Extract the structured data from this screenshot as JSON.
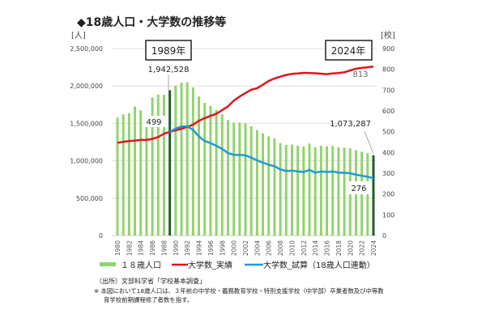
{
  "chart_data": {
    "type": "bar+line",
    "title": "◆18歳人口・大学数の推移等",
    "left_unit": "[人]",
    "right_unit": "[校]",
    "ylim_left": [
      0,
      2500000
    ],
    "ylim_right": [
      0,
      900
    ],
    "left_ticks": [
      "2,500,000",
      "2,000,000",
      "1,500,000",
      "1,000,000",
      "500,000",
      "0"
    ],
    "left_tick_values": [
      2500000,
      2000000,
      1500000,
      1000000,
      500000,
      0
    ],
    "right_ticks": [
      "900",
      "800",
      "700",
      "600",
      "500",
      "400",
      "300",
      "200",
      "100",
      "0"
    ],
    "right_tick_values": [
      900,
      800,
      700,
      600,
      500,
      400,
      300,
      200,
      100,
      0
    ],
    "grid": true,
    "x": [
      1980,
      1981,
      1982,
      1983,
      1984,
      1985,
      1986,
      1987,
      1988,
      1989,
      1990,
      1991,
      1992,
      1993,
      1994,
      1995,
      1996,
      1997,
      1998,
      1999,
      2000,
      2001,
      2002,
      2003,
      2004,
      2005,
      2006,
      2007,
      2008,
      2009,
      2010,
      2011,
      2012,
      2013,
      2014,
      2015,
      2016,
      2017,
      2018,
      2019,
      2020,
      2021,
      2022,
      2023,
      2024
    ],
    "x_tick_labels": [
      "1980",
      "1982",
      "1984",
      "1986",
      "1988",
      "1990",
      "1992",
      "1994",
      "1996",
      "1998",
      "2000",
      "2002",
      "2004",
      "2006",
      "2008",
      "2010",
      "2012",
      "2014",
      "2016",
      "2018",
      "2020",
      "2022",
      "2024"
    ],
    "series": [
      {
        "name": "１８歳人口",
        "axis": "left",
        "kind": "bar",
        "color": "#92d36e",
        "highlight_color": "#1e5e2a",
        "values": [
          1578000,
          1621000,
          1637000,
          1724000,
          1675000,
          1557000,
          1846000,
          1883000,
          1882000,
          1942528,
          2005000,
          2044000,
          2049000,
          1981000,
          1859000,
          1773000,
          1732000,
          1681000,
          1624000,
          1545000,
          1510000,
          1512000,
          1503000,
          1462000,
          1411000,
          1366000,
          1326000,
          1300000,
          1237000,
          1212000,
          1216000,
          1202000,
          1191000,
          1231000,
          1181000,
          1200000,
          1193000,
          1198000,
          1180000,
          1175000,
          1167000,
          1141000,
          1122000,
          1102000,
          1073287
        ]
      },
      {
        "name": "大学数_実績",
        "axis": "right",
        "kind": "line",
        "color": "#e0141e",
        "values": [
          446,
          451,
          455,
          457,
          460,
          460,
          465,
          474,
          490,
          499,
          507,
          514,
          523,
          534,
          552,
          565,
          576,
          586,
          604,
          622,
          649,
          669,
          686,
          702,
          709,
          726,
          744,
          756,
          765,
          773,
          778,
          780,
          783,
          782,
          781,
          779,
          777,
          780,
          782,
          786,
          795,
          803,
          807,
          810,
          813
        ]
      },
      {
        "name": "大学数_試算（18歳人口連動）",
        "axis": "right",
        "kind": "line",
        "color": "#1f9bd1",
        "values": [
          null,
          null,
          null,
          null,
          null,
          null,
          null,
          null,
          null,
          499,
          515,
          525,
          526,
          509,
          477,
          455,
          445,
          432,
          417,
          397,
          388,
          388,
          386,
          375,
          362,
          351,
          341,
          334,
          318,
          311,
          312,
          309,
          306,
          316,
          303,
          308,
          306,
          308,
          303,
          302,
          300,
          293,
          288,
          283,
          276
        ]
      }
    ],
    "annotations": {
      "box_1989": "1989年",
      "box_2024": "2024年",
      "pop_1989": "1,942,528",
      "univ_1989": "499",
      "univ_2024": "813",
      "pop_2024": "1,073,287",
      "sim_2024": "276"
    },
    "legend": {
      "placement": "bottom",
      "items": [
        "１８歳人口",
        "大学数_実績",
        "大学数_試算（18歳人口連動）"
      ]
    }
  },
  "notes": {
    "source": "（出所）文部科学省「学校基本調査」",
    "note_line1": "※ 本図において18歳人口は、３年前の中学校・義務教育学校・特別支援学校（中学部）卒業者数及び中等教",
    "note_line2": "育学校前期課程修了者数を指す。"
  }
}
